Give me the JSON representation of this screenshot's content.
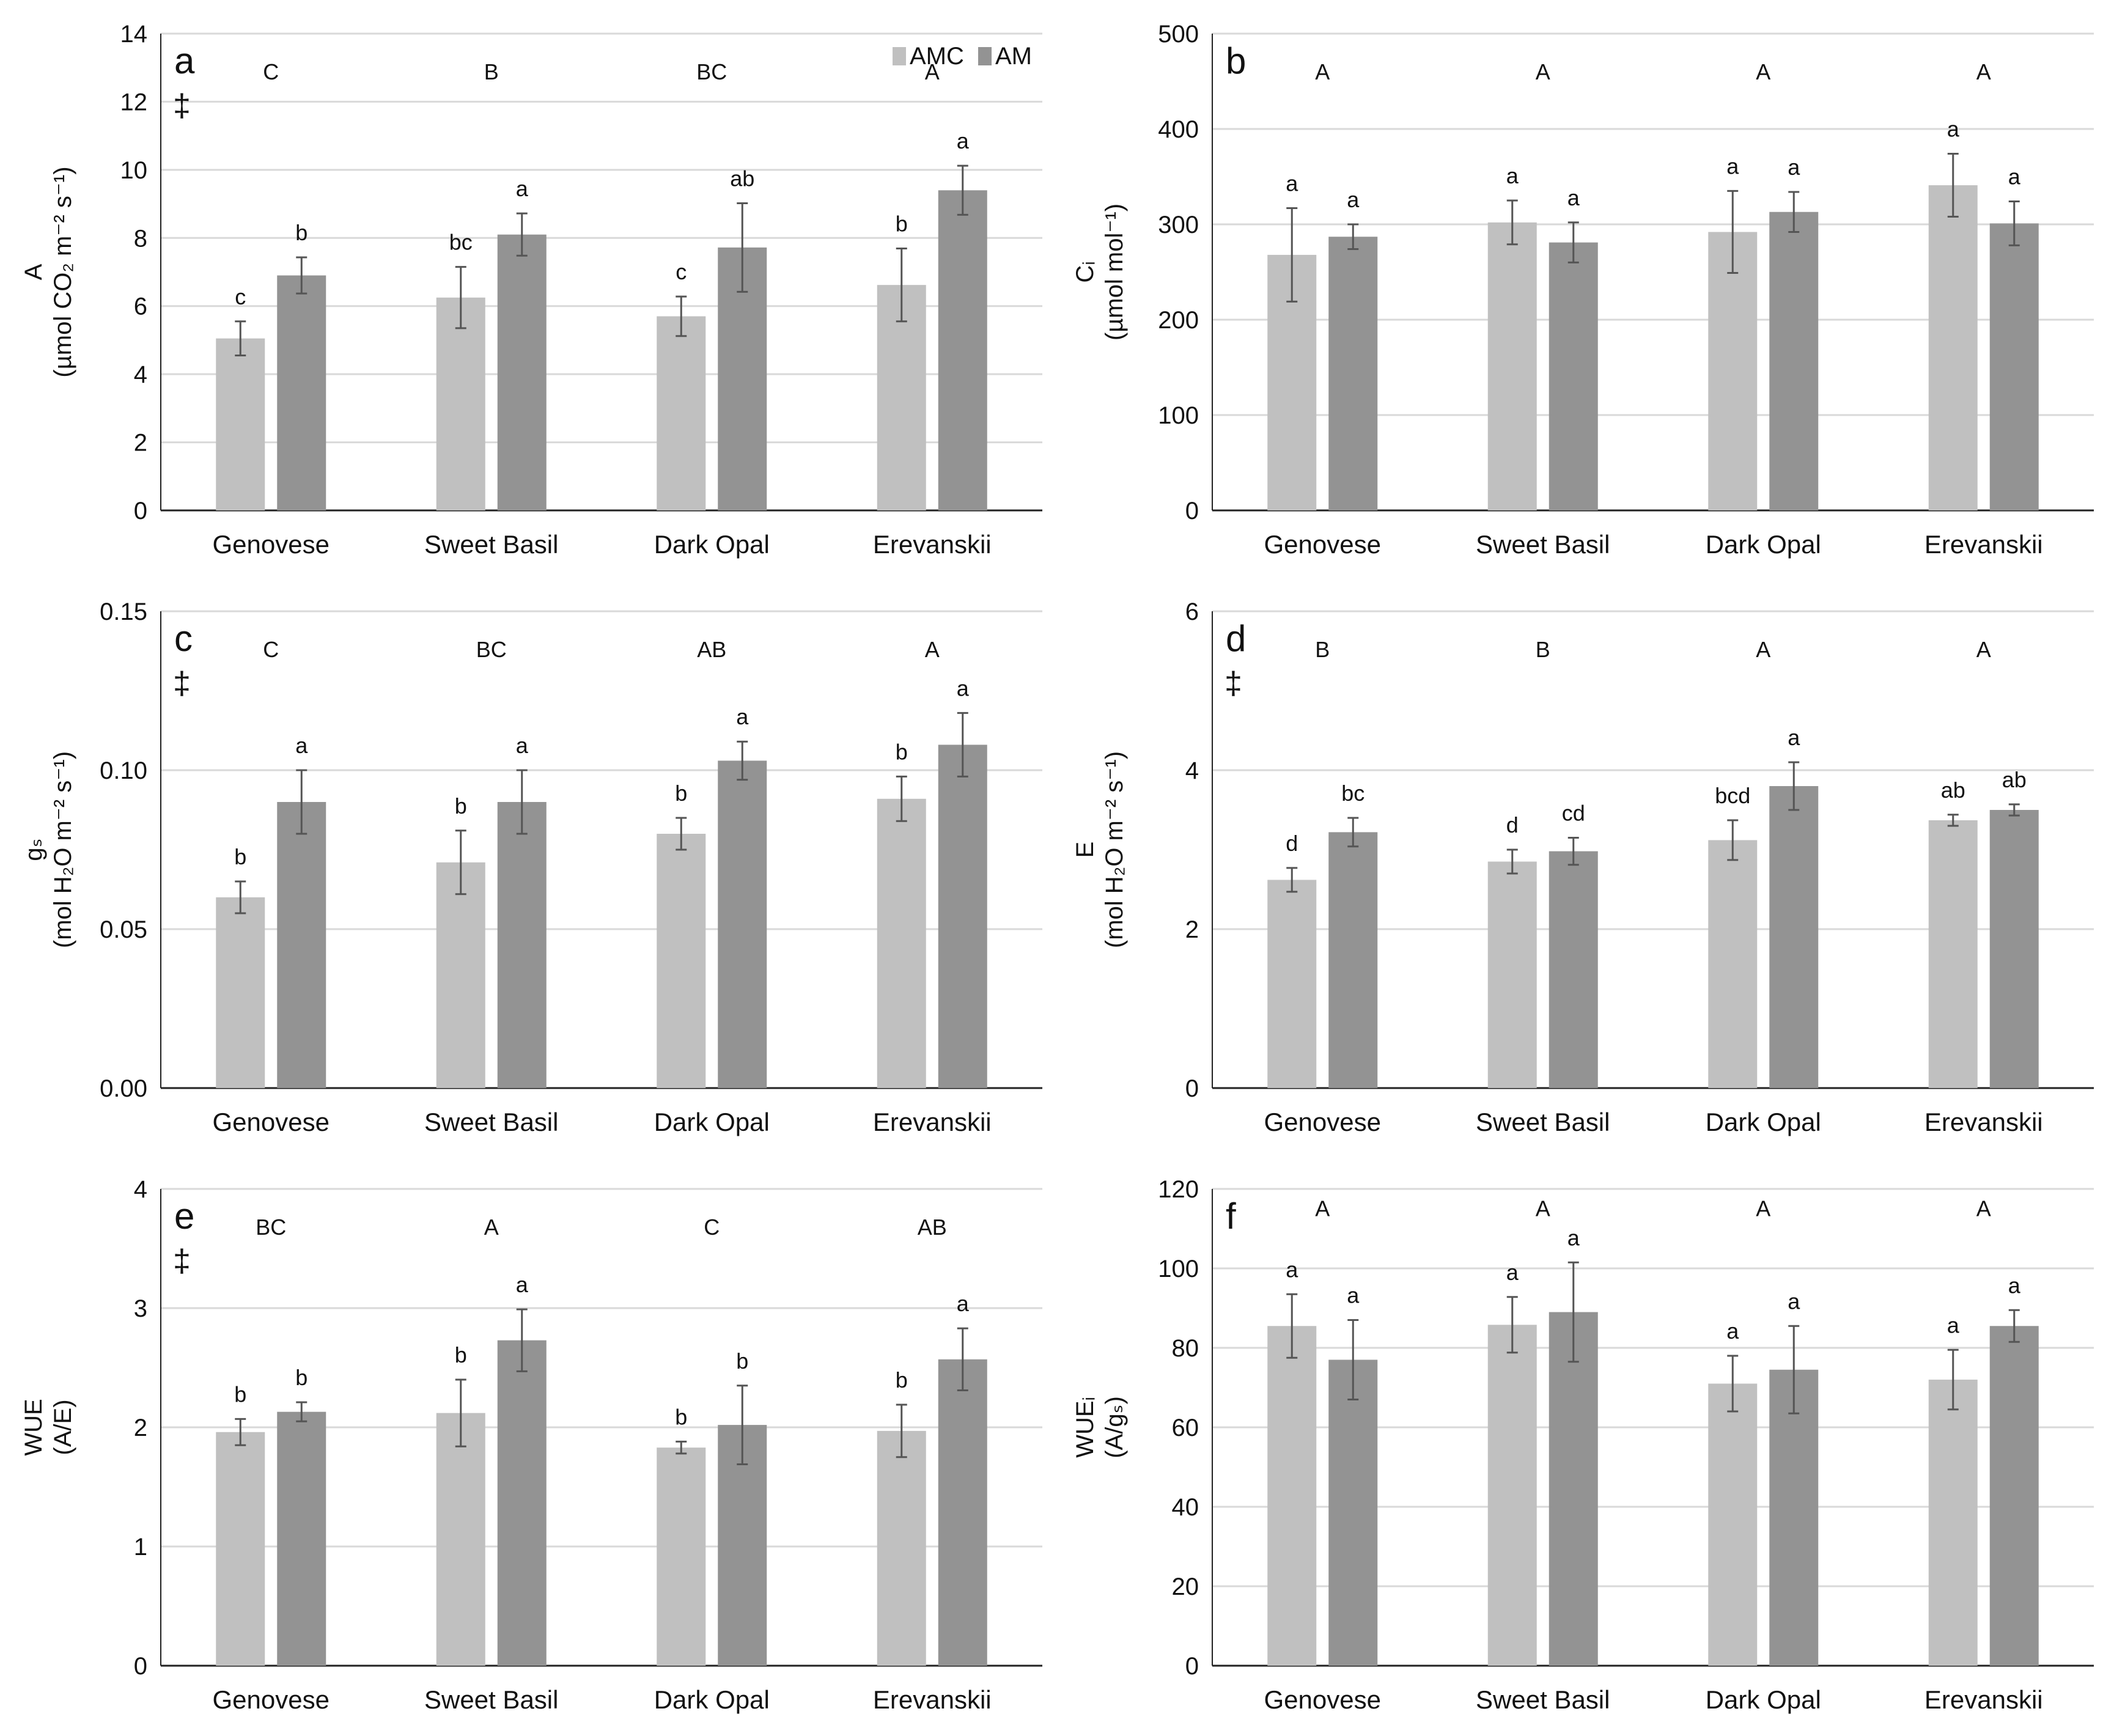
{
  "legend": {
    "items": [
      {
        "label": "AMC",
        "color": "#c0c0c0"
      },
      {
        "label": "AM",
        "color": "#939393"
      }
    ]
  },
  "chart_data": [
    {
      "type": "bar",
      "panel": "a",
      "dagger": "‡",
      "ylabel": "A",
      "yunits": "(µmol CO₂ m⁻² s⁻¹)",
      "ylim": [
        0,
        14
      ],
      "ystep": 2,
      "decimals": 0,
      "categories": [
        "Genovese",
        "Sweet Basil",
        "Dark Opal",
        "Erevanskii"
      ],
      "group_letters": [
        "C",
        "B",
        "BC",
        "A"
      ],
      "series": [
        {
          "name": "AMC",
          "values": [
            5.05,
            6.25,
            5.7,
            6.62
          ],
          "errors": [
            0.5,
            0.9,
            0.58,
            1.07
          ],
          "letters": [
            "c",
            "bc",
            "c",
            "b"
          ]
        },
        {
          "name": "AM",
          "values": [
            6.9,
            8.1,
            7.72,
            9.4
          ],
          "errors": [
            0.53,
            0.62,
            1.3,
            0.72
          ],
          "letters": [
            "b",
            "a",
            "ab",
            "a"
          ]
        }
      ]
    },
    {
      "type": "bar",
      "panel": "b",
      "dagger": "",
      "ylabel": "Cᵢ",
      "yunits": "(µmol mol⁻¹)",
      "ylim": [
        0,
        500
      ],
      "ystep": 100,
      "decimals": 0,
      "categories": [
        "Genovese",
        "Sweet Basil",
        "Dark Opal",
        "Erevanskii"
      ],
      "group_letters": [
        "A",
        "A",
        "A",
        "A"
      ],
      "series": [
        {
          "name": "AMC",
          "values": [
            268,
            302,
            292,
            341
          ],
          "errors": [
            49,
            23,
            43,
            33
          ],
          "letters": [
            "a",
            "a",
            "a",
            "a"
          ]
        },
        {
          "name": "AM",
          "values": [
            287,
            281,
            313,
            301
          ],
          "errors": [
            13,
            21,
            21,
            23
          ],
          "letters": [
            "a",
            "a",
            "a",
            "a"
          ]
        }
      ]
    },
    {
      "type": "bar",
      "panel": "c",
      "dagger": "‡",
      "ylabel": "gₛ",
      "yunits": "(mol H₂O m⁻² s⁻¹)",
      "ylim": [
        0,
        0.15
      ],
      "ystep": 0.05,
      "decimals": 2,
      "categories": [
        "Genovese",
        "Sweet Basil",
        "Dark Opal",
        "Erevanskii"
      ],
      "group_letters": [
        "C",
        "BC",
        "AB",
        "A"
      ],
      "series": [
        {
          "name": "AMC",
          "values": [
            0.06,
            0.071,
            0.08,
            0.091
          ],
          "errors": [
            0.005,
            0.01,
            0.005,
            0.007
          ],
          "letters": [
            "b",
            "b",
            "b",
            "b"
          ]
        },
        {
          "name": "AM",
          "values": [
            0.09,
            0.09,
            0.103,
            0.108
          ],
          "errors": [
            0.01,
            0.01,
            0.006,
            0.01
          ],
          "letters": [
            "a",
            "a",
            "a",
            "a"
          ]
        }
      ]
    },
    {
      "type": "bar",
      "panel": "d",
      "dagger": "‡",
      "ylabel": "E",
      "yunits": "(mol H₂O m⁻² s⁻¹)",
      "ylim": [
        0,
        6
      ],
      "ystep": 2,
      "decimals": 0,
      "categories": [
        "Genovese",
        "Sweet Basil",
        "Dark Opal",
        "Erevanskii"
      ],
      "group_letters": [
        "B",
        "B",
        "A",
        "A"
      ],
      "series": [
        {
          "name": "AMC",
          "values": [
            2.62,
            2.85,
            3.12,
            3.37
          ],
          "errors": [
            0.15,
            0.15,
            0.25,
            0.07
          ],
          "letters": [
            "d",
            "d",
            "bcd",
            "ab"
          ]
        },
        {
          "name": "AM",
          "values": [
            3.22,
            2.98,
            3.8,
            3.5
          ],
          "errors": [
            0.18,
            0.17,
            0.3,
            0.07
          ],
          "letters": [
            "bc",
            "cd",
            "a",
            "ab"
          ]
        }
      ]
    },
    {
      "type": "bar",
      "panel": "e",
      "dagger": "‡",
      "ylabel": "WUE",
      "yunits": "(A/E)",
      "ylim": [
        0,
        4
      ],
      "ystep": 1,
      "decimals": 0,
      "categories": [
        "Genovese",
        "Sweet Basil",
        "Dark Opal",
        "Erevanskii"
      ],
      "group_letters": [
        "BC",
        "A",
        "C",
        "AB"
      ],
      "series": [
        {
          "name": "AMC",
          "values": [
            1.96,
            2.12,
            1.83,
            1.97
          ],
          "errors": [
            0.11,
            0.28,
            0.05,
            0.22
          ],
          "letters": [
            "b",
            "b",
            "b",
            "b"
          ]
        },
        {
          "name": "AM",
          "values": [
            2.13,
            2.73,
            2.02,
            2.57
          ],
          "errors": [
            0.08,
            0.26,
            0.33,
            0.26
          ],
          "letters": [
            "b",
            "a",
            "b",
            "a"
          ]
        }
      ]
    },
    {
      "type": "bar",
      "panel": "f",
      "dagger": "",
      "ylabel": "WUEᵢ",
      "yunits": "(A/gₛ)",
      "ylim": [
        0,
        120
      ],
      "ystep": 20,
      "decimals": 0,
      "categories": [
        "Genovese",
        "Sweet Basil",
        "Dark Opal",
        "Erevanskii"
      ],
      "group_letters": [
        "A",
        "A",
        "A",
        "A"
      ],
      "series": [
        {
          "name": "AMC",
          "values": [
            85.5,
            85.8,
            71,
            72
          ],
          "errors": [
            8,
            7,
            7,
            7.5
          ],
          "letters": [
            "a",
            "a",
            "a",
            "a"
          ]
        },
        {
          "name": "AM",
          "values": [
            77,
            89,
            74.5,
            85.5
          ],
          "errors": [
            10,
            12.5,
            11,
            4
          ],
          "letters": [
            "a",
            "a",
            "a",
            "a"
          ]
        }
      ]
    }
  ]
}
